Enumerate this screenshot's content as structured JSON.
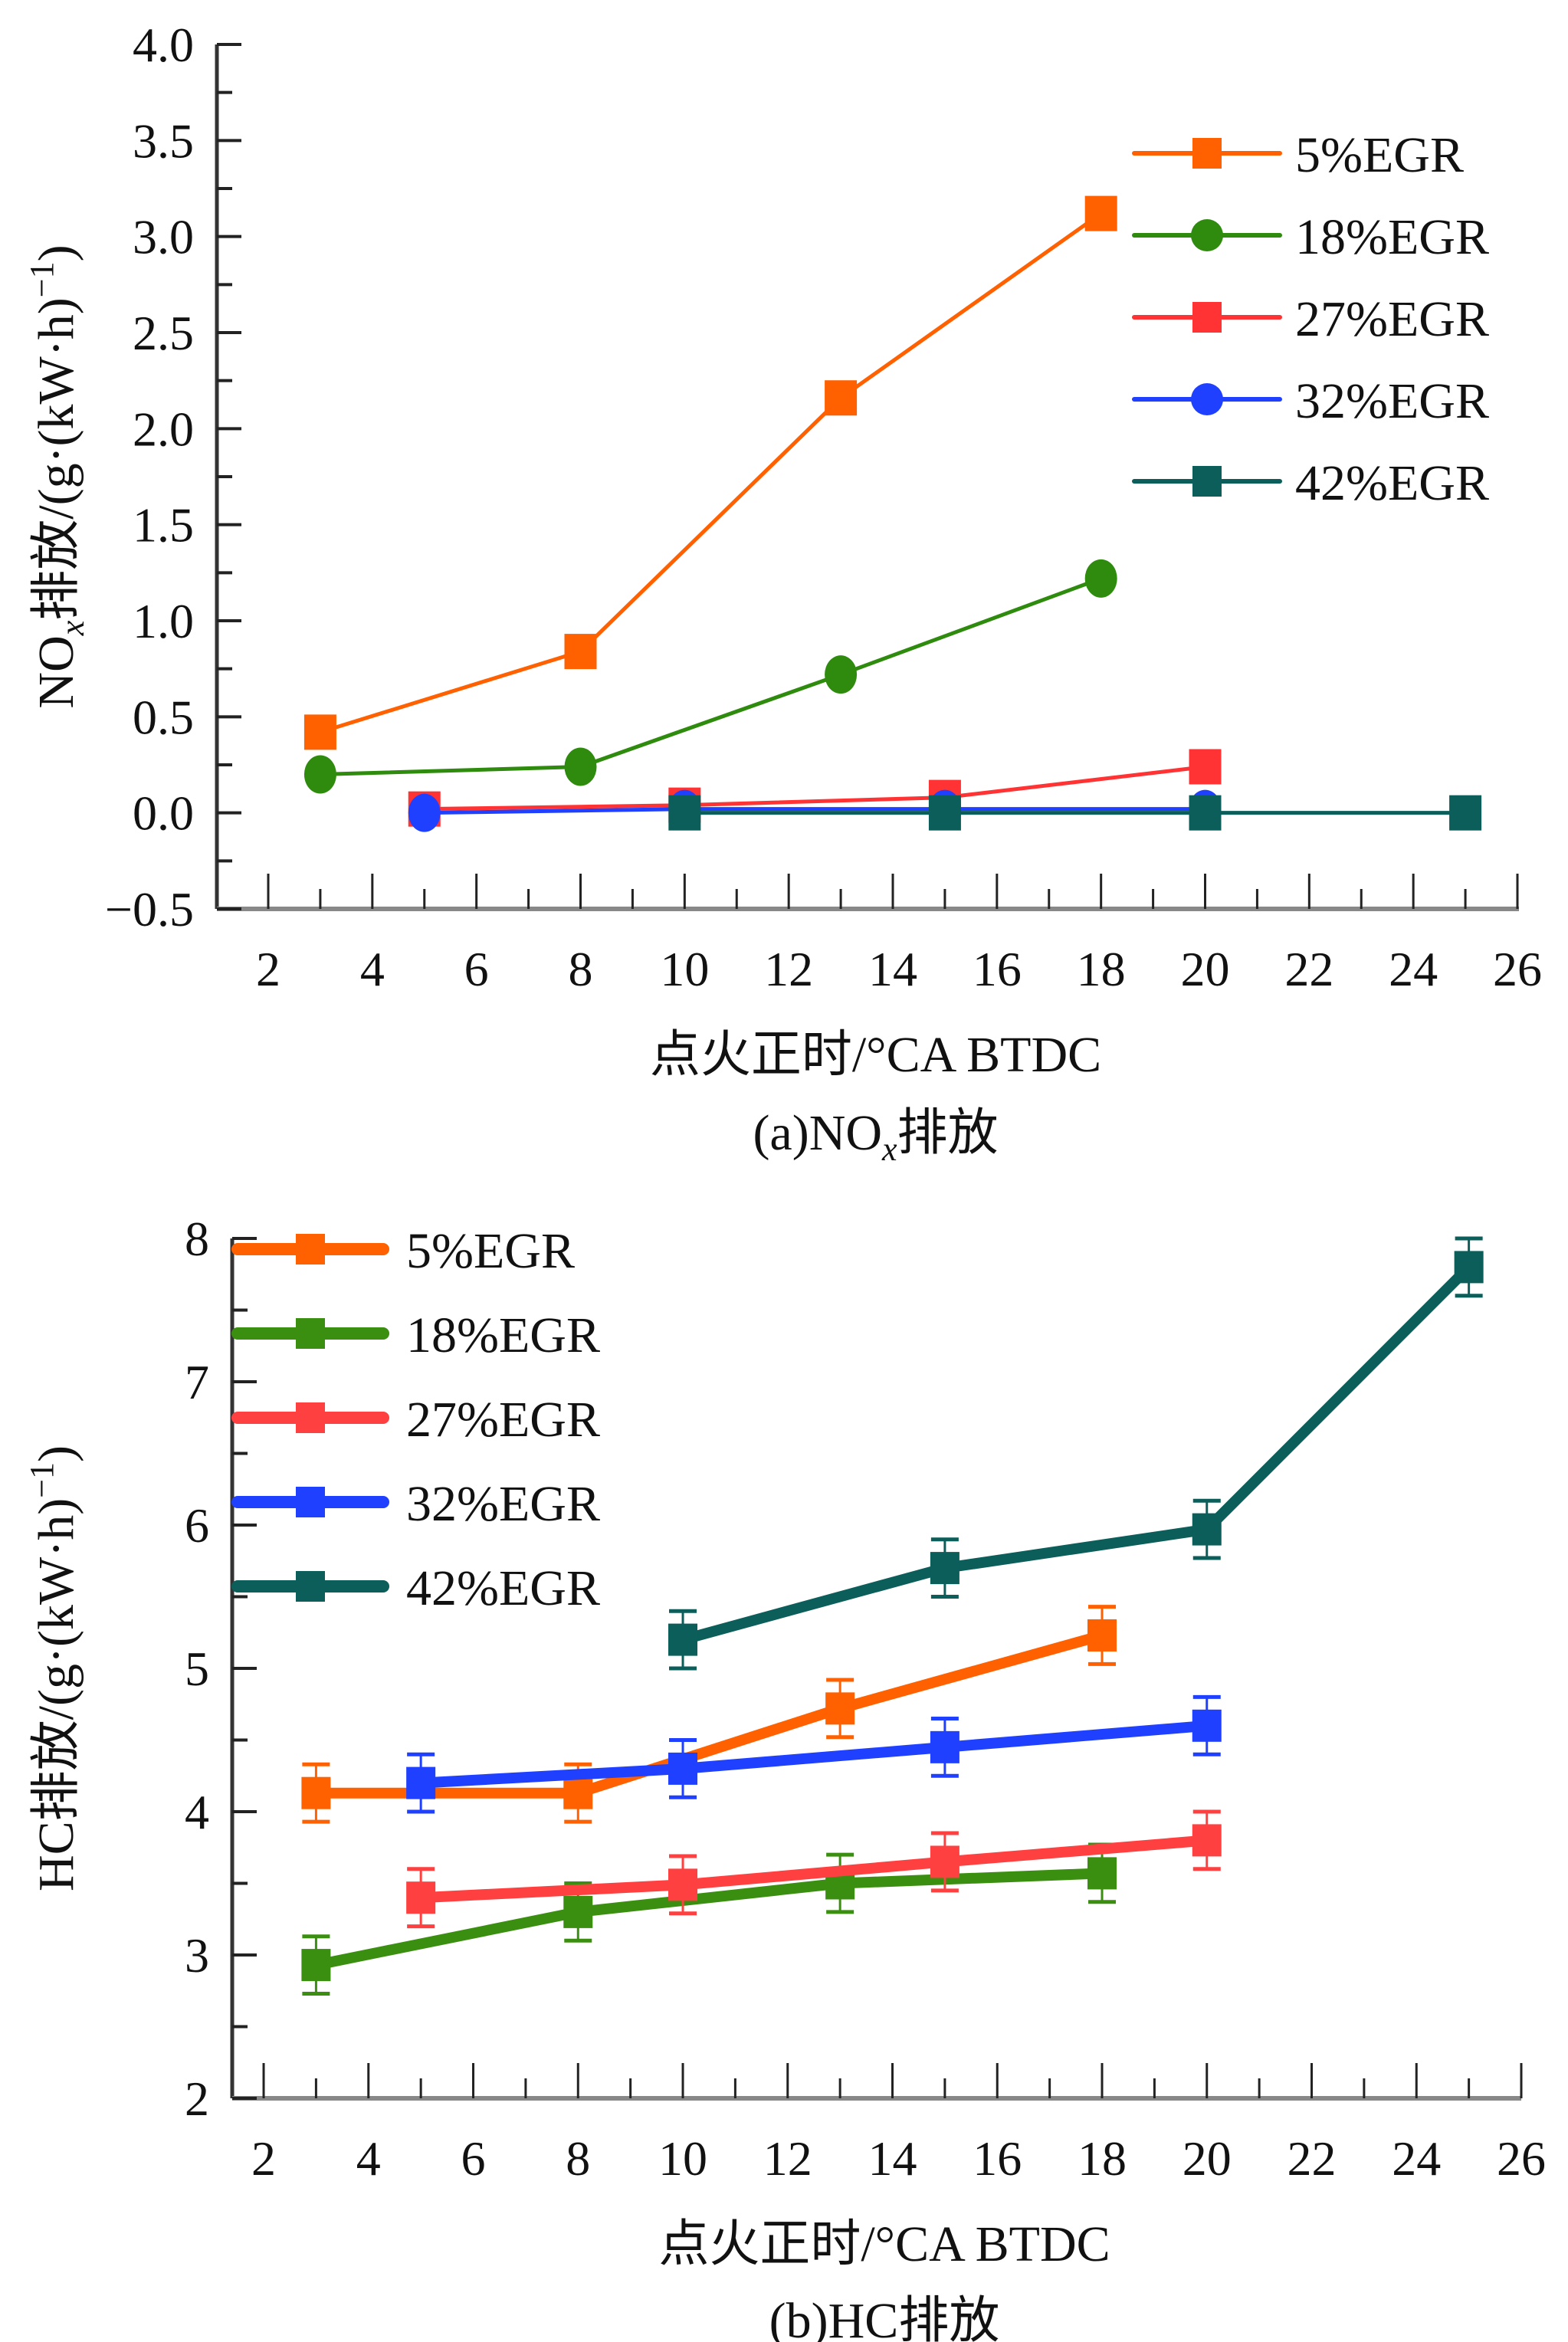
{
  "chart_data": [
    {
      "type": "line",
      "id": "a",
      "title": "(a)NOx排放",
      "caption_parts": [
        "(a)NO",
        "x",
        "排放"
      ],
      "xlabel": "点火正时/°CA BTDC",
      "ylabel_parts": [
        "NO",
        "x",
        "排放/(g·(kW·h)",
        "−1",
        ")"
      ],
      "xlim": [
        1,
        26
      ],
      "ylim": [
        -0.5,
        4.0
      ],
      "xticks": [
        2,
        4,
        6,
        8,
        10,
        12,
        14,
        16,
        18,
        20,
        22,
        24,
        26
      ],
      "xtick_labels": [
        "2",
        "4",
        "6",
        "8",
        "10",
        "12",
        "14",
        "16",
        "18",
        "20",
        "22",
        "24",
        "26"
      ],
      "yticks": [
        -0.5,
        0.0,
        0.5,
        1.0,
        1.5,
        2.0,
        2.5,
        3.0,
        3.5,
        4.0
      ],
      "ytick_labels": [
        "−0.5",
        "0.0",
        "0.5",
        "1.0",
        "1.5",
        "2.0",
        "2.5",
        "3.0",
        "3.5",
        "4.0"
      ],
      "grid": false,
      "legend_position": "top-right",
      "series": [
        {
          "name": "5%EGR",
          "color": "#ff6000",
          "marker": "square",
          "x": [
            3,
            8,
            13,
            18
          ],
          "y": [
            0.42,
            0.84,
            2.16,
            3.12
          ]
        },
        {
          "name": "18%EGR",
          "color": "#2e8b0e",
          "marker": "circle",
          "x": [
            3,
            8,
            13,
            18
          ],
          "y": [
            0.2,
            0.24,
            0.72,
            1.22
          ]
        },
        {
          "name": "27%EGR",
          "color": "#ff3333",
          "marker": "square",
          "x": [
            5,
            10,
            15,
            20
          ],
          "y": [
            0.02,
            0.04,
            0.08,
            0.24
          ]
        },
        {
          "name": "32%EGR",
          "color": "#2040ff",
          "marker": "circle",
          "x": [
            5,
            10,
            15,
            20
          ],
          "y": [
            0.0,
            0.02,
            0.02,
            0.02
          ]
        },
        {
          "name": "42%EGR",
          "color": "#0b5e5a",
          "marker": "square",
          "x": [
            10,
            15,
            20,
            25
          ],
          "y": [
            0.0,
            0.0,
            0.0,
            0.0
          ]
        }
      ]
    },
    {
      "type": "line",
      "id": "b",
      "title": "(b)HC排放",
      "caption_parts": [
        "(b)HC排放"
      ],
      "xlabel": "点火正时/°CA BTDC",
      "ylabel_parts": [
        "HC排放/(g·(kW·h)",
        "−1",
        ")"
      ],
      "xlim": [
        1.4,
        26
      ],
      "ylim": [
        2,
        8
      ],
      "xticks": [
        2,
        4,
        6,
        8,
        10,
        12,
        14,
        16,
        18,
        20,
        22,
        24,
        26
      ],
      "xtick_labels": [
        "2",
        "4",
        "6",
        "8",
        "10",
        "12",
        "14",
        "16",
        "18",
        "20",
        "22",
        "24",
        "26"
      ],
      "yticks": [
        2,
        3,
        4,
        5,
        6,
        7,
        8
      ],
      "ytick_labels": [
        "2",
        "3",
        "4",
        "5",
        "6",
        "7",
        "8"
      ],
      "grid": false,
      "legend_position": "top-left",
      "error_bars": true,
      "series": [
        {
          "name": "5%EGR",
          "color": "#ff6000",
          "marker": "square",
          "x": [
            3,
            8,
            13,
            18
          ],
          "y": [
            4.13,
            4.13,
            4.72,
            5.23
          ],
          "err": [
            0.2,
            0.2,
            0.2,
            0.2
          ]
        },
        {
          "name": "18%EGR",
          "color": "#3a8f10",
          "marker": "square",
          "x": [
            3,
            8,
            13,
            18
          ],
          "y": [
            2.93,
            3.3,
            3.5,
            3.57
          ],
          "err": [
            0.2,
            0.2,
            0.2,
            0.2
          ]
        },
        {
          "name": "27%EGR",
          "color": "#ff4040",
          "marker": "square",
          "x": [
            5,
            10,
            15,
            20
          ],
          "y": [
            3.4,
            3.49,
            3.65,
            3.8
          ],
          "err": [
            0.2,
            0.2,
            0.2,
            0.2
          ]
        },
        {
          "name": "32%EGR",
          "color": "#2040ff",
          "marker": "square",
          "x": [
            5,
            10,
            15,
            20
          ],
          "y": [
            4.2,
            4.3,
            4.45,
            4.6
          ],
          "err": [
            0.2,
            0.2,
            0.2,
            0.2
          ]
        },
        {
          "name": "42%EGR",
          "color": "#0b5e5a",
          "marker": "square",
          "x": [
            10,
            15,
            20,
            25
          ],
          "y": [
            5.2,
            5.7,
            5.97,
            7.8
          ],
          "err": [
            0.2,
            0.2,
            0.2,
            0.2
          ]
        }
      ]
    }
  ]
}
